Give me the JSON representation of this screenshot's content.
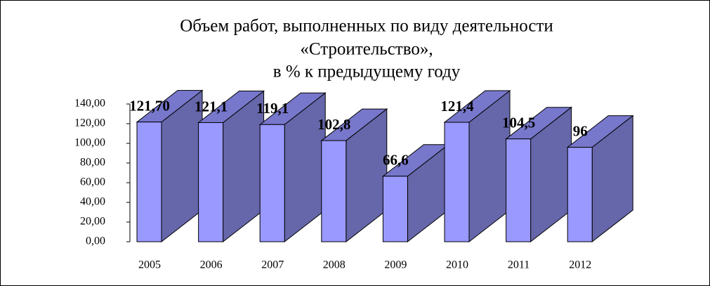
{
  "chart_data": {
    "type": "bar3d",
    "title": [
      "Объем работ, выполненных по виду деятельности",
      "«Строительство»,",
      "в % к предыдущему году"
    ],
    "categories": [
      "2005",
      "2006",
      "2007",
      "2008",
      "2009",
      "2010",
      "2011",
      "2012"
    ],
    "values": [
      121.7,
      121.1,
      119.1,
      102.8,
      66.6,
      121.4,
      104.5,
      96
    ],
    "value_labels": [
      "121,70",
      "121,1",
      "119,1",
      "102,8",
      "66,6",
      "121,4",
      "104,5",
      "96"
    ],
    "color": "#9999ff",
    "ylim": [
      0,
      140
    ],
    "yticks": [
      {
        "value": 0,
        "label": "0,00"
      },
      {
        "value": 20,
        "label": "20,00"
      },
      {
        "value": 40,
        "label": "40,00"
      },
      {
        "value": 60,
        "label": "60,00"
      },
      {
        "value": 80,
        "label": "80,00"
      },
      {
        "value": 100,
        "label": "100,00"
      },
      {
        "value": 120,
        "label": "120,00"
      },
      {
        "value": 140,
        "label": "140,00"
      }
    ]
  }
}
